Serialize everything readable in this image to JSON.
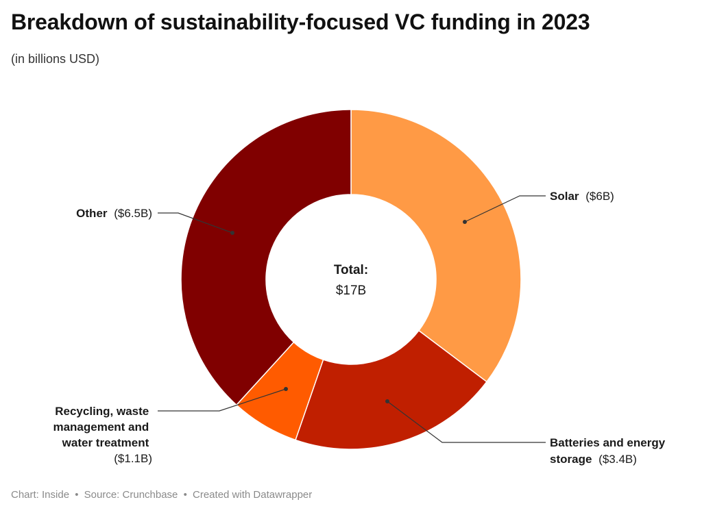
{
  "title": "Breakdown of sustainability-focused VC funding in 2023",
  "subtitle": "(in billions USD)",
  "footer": {
    "chart": "Chart: Inside",
    "source": "Source: Crunchbase",
    "created": "Created with Datawrapper"
  },
  "chart_data": {
    "type": "pie",
    "donut": true,
    "center_label": "Total:",
    "center_value": "$17B",
    "slices": [
      {
        "label": "Solar",
        "value": 6,
        "display": "($6B)",
        "color": "#FF9A45"
      },
      {
        "label": "Batteries and energy storage",
        "value": 3.4,
        "display": "($3.4B)",
        "color": "#C01F00"
      },
      {
        "label": "Recycling, waste management and water treatment",
        "value": 1.1,
        "display": "($1.1B)",
        "color": "#FF5B00"
      },
      {
        "label": "Other",
        "value": 6.5,
        "display": "($6.5B)",
        "color": "#800000"
      }
    ]
  }
}
